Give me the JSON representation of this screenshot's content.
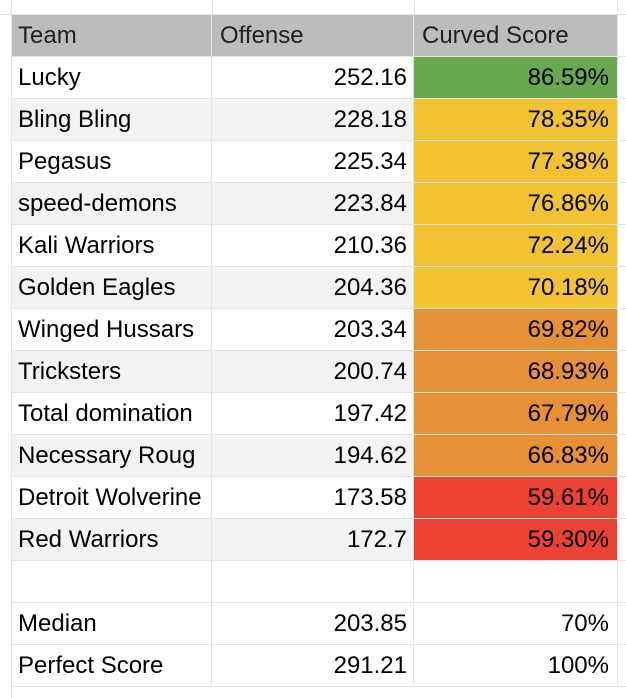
{
  "columns": [
    "Team",
    "Offense",
    "Curved Score"
  ],
  "teams": [
    {
      "team": "Lucky",
      "offense": "252.16",
      "score": "86.59%",
      "color": "#6aa84f"
    },
    {
      "team": "Bling Bling",
      "offense": "228.18",
      "score": "78.35%",
      "color": "#f1c232"
    },
    {
      "team": "Pegasus",
      "offense": "225.34",
      "score": "77.38%",
      "color": "#f1c232"
    },
    {
      "team": "speed-demons",
      "offense": "223.84",
      "score": "76.86%",
      "color": "#f1c232"
    },
    {
      "team": "Kali Warriors",
      "offense": "210.36",
      "score": "72.24%",
      "color": "#f1c232"
    },
    {
      "team": "Golden Eagles",
      "offense": "204.36",
      "score": "70.18%",
      "color": "#f1c232"
    },
    {
      "team": "Winged Hussars",
      "offense": "203.34",
      "score": "69.82%",
      "color": "#e69138"
    },
    {
      "team": "Tricksters",
      "offense": "200.74",
      "score": "68.93%",
      "color": "#e69138"
    },
    {
      "team": "Total domination",
      "offense": "197.42",
      "score": "67.79%",
      "color": "#e69138"
    },
    {
      "team": "Necessary Roug",
      "offense": "194.62",
      "score": "66.83%",
      "color": "#e69138"
    },
    {
      "team": "Detroit Wolverine",
      "offense": "173.58",
      "score": "59.61%",
      "color": "#ea4335"
    },
    {
      "team": "Red Warriors",
      "offense": "172.7",
      "score": "59.30%",
      "color": "#ea4335"
    }
  ],
  "summary": [
    {
      "label": "Median",
      "offense": "203.85",
      "score": "70%"
    },
    {
      "label": "Perfect Score",
      "offense": "291.21",
      "score": "100%"
    }
  ]
}
